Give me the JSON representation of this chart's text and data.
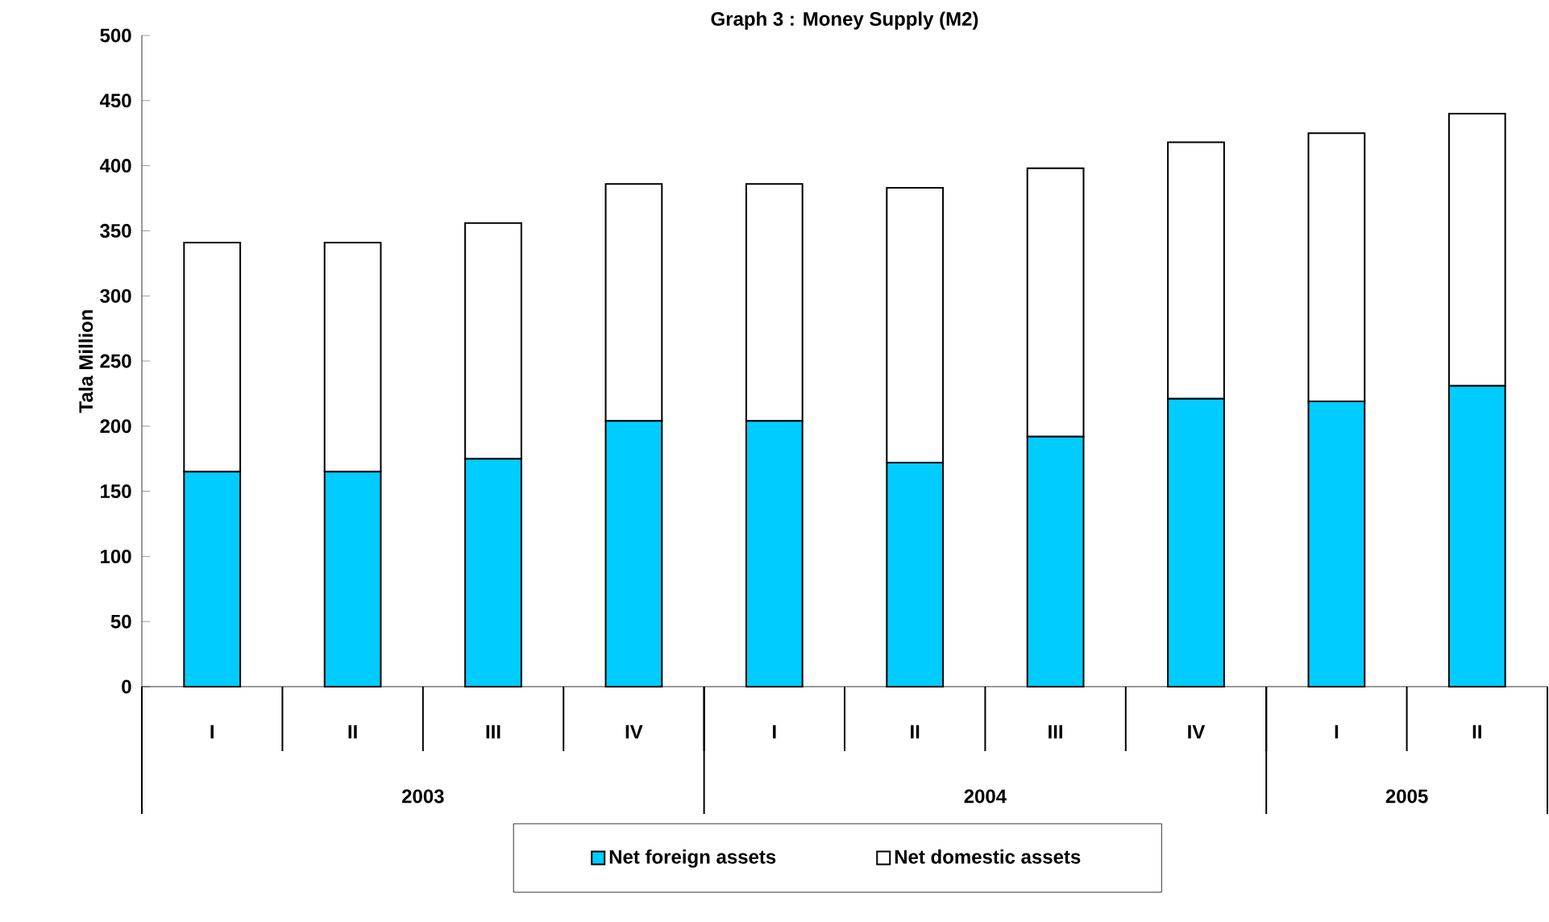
{
  "chart_data": {
    "type": "bar",
    "title": "Graph 3 : Money Supply (M2)",
    "ylabel": "Tala Million",
    "categories": [
      "I",
      "II",
      "III",
      "IV",
      "I",
      "II",
      "III",
      "IV",
      "I",
      "II"
    ],
    "series": [
      {
        "name": "Net foreign assets",
        "color": "#00ccff",
        "values": [
          165,
          165,
          175,
          204,
          204,
          172,
          192,
          221,
          219,
          231
        ]
      },
      {
        "name": "Net domestic assets",
        "color": "#ffffff",
        "values": [
          176,
          176,
          181,
          182,
          182,
          211,
          206,
          197,
          206,
          209
        ]
      }
    ],
    "stacked": true,
    "ylim": [
      0,
      500
    ],
    "yticks": [
      0,
      50,
      100,
      150,
      200,
      250,
      300,
      350,
      400,
      450,
      500
    ],
    "annotations": [
      "2003",
      "2004",
      "2005"
    ],
    "legend": "bottom",
    "grid": false
  }
}
